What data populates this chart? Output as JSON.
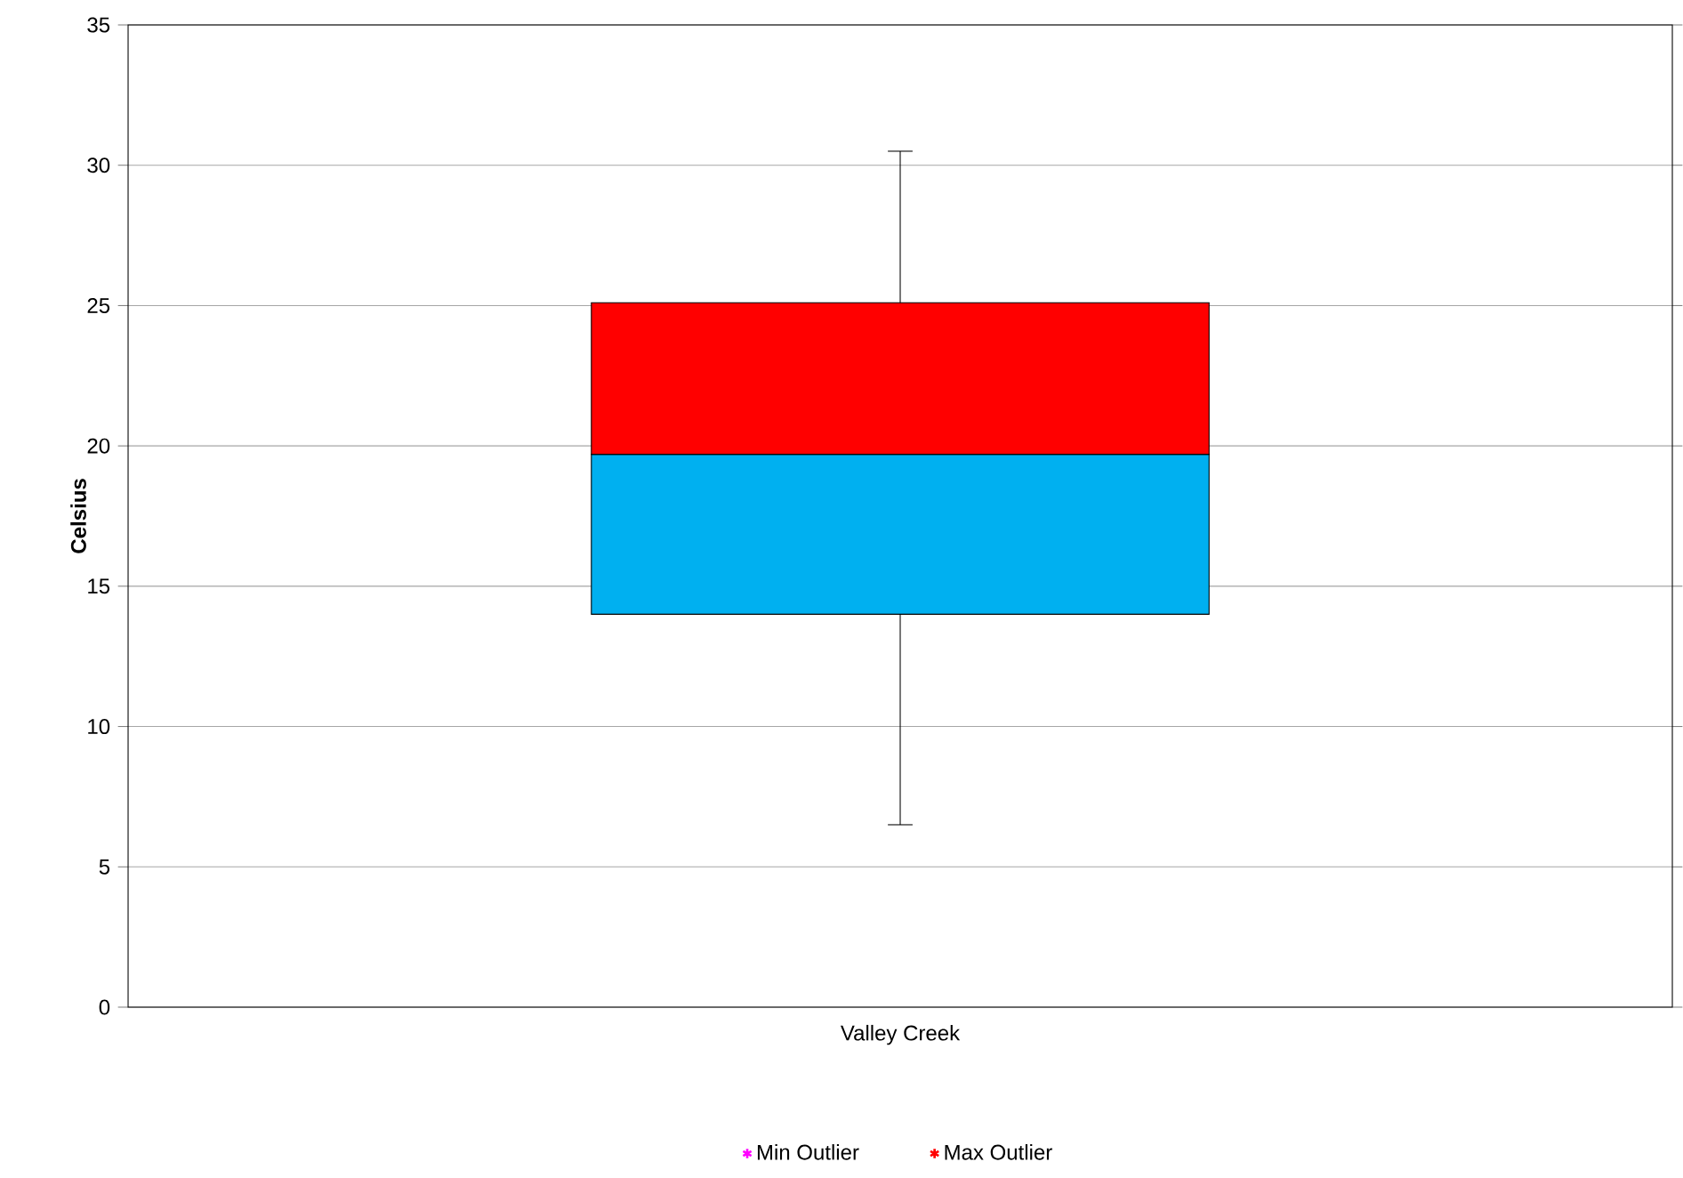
{
  "chart_data": {
    "type": "box",
    "ylabel": "Celsius",
    "categories": [
      "Valley Creek"
    ],
    "ylim": [
      0,
      35
    ],
    "yticks": [
      0,
      5,
      10,
      15,
      20,
      25,
      30,
      35
    ],
    "grid": "y",
    "legend": "bottom",
    "series": [
      {
        "colors": [
          [
            "#00b0f0",
            "#ff0000"
          ]
        ],
        "boxes": [
          {
            "low": 6.5,
            "q1": 14.0,
            "median": 19.7,
            "q3": 25.1,
            "high": 30.5
          }
        ]
      },
      {
        "type": "scatter",
        "name": "Min Outlier",
        "color": "#ff00ff",
        "marker": "star",
        "values": [
          null
        ]
      },
      {
        "type": "scatter",
        "name": "Max Outlier",
        "color": "#ff0000",
        "marker": "star",
        "values": [
          null
        ]
      }
    ]
  }
}
